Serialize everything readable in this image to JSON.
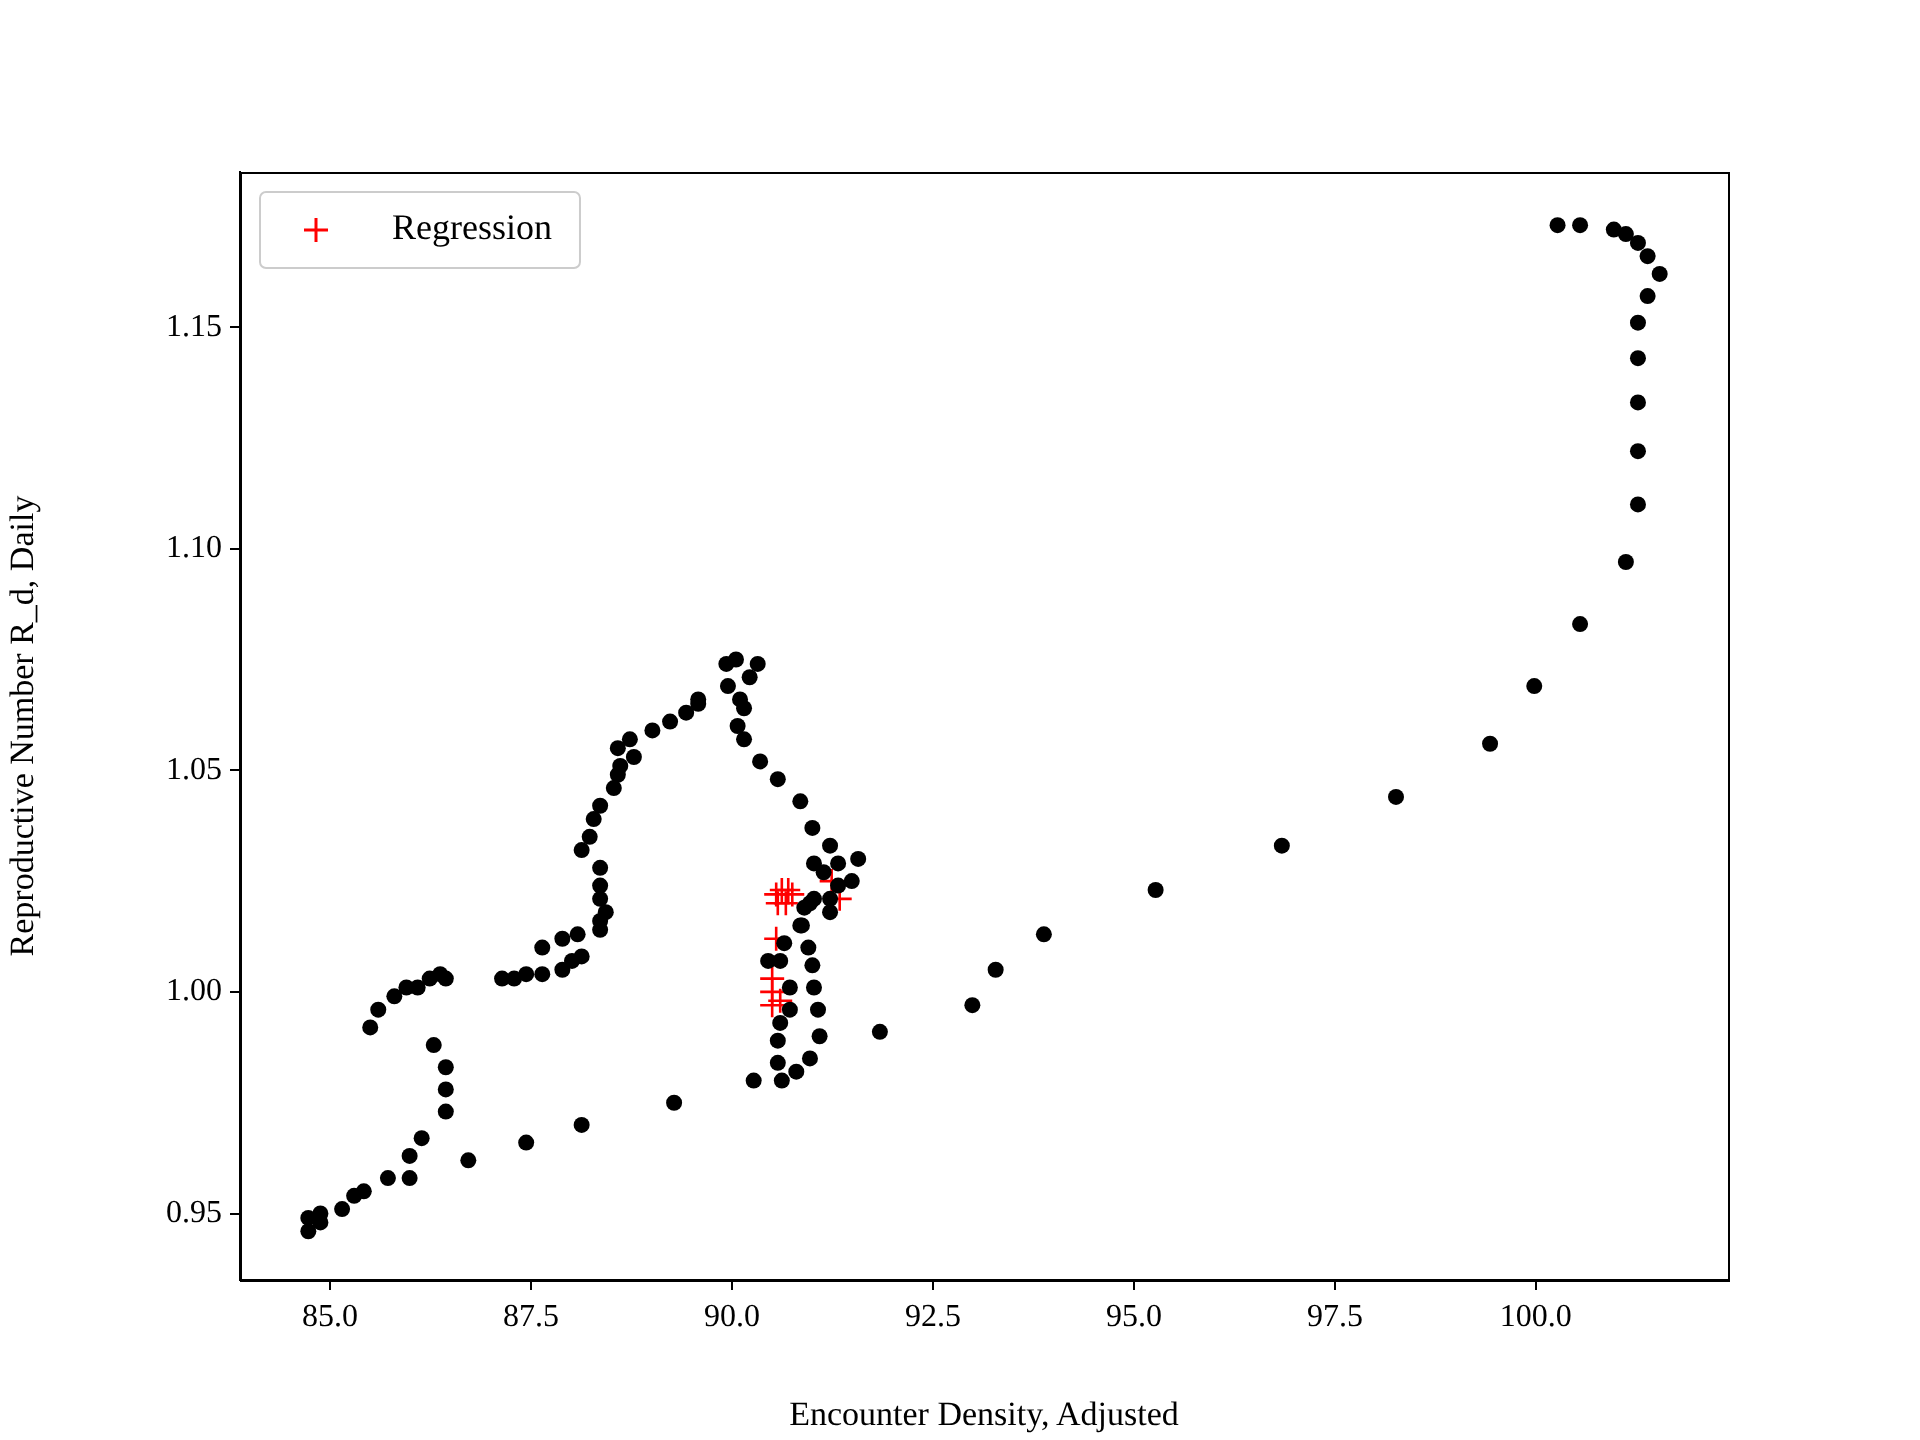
{
  "chart_data": {
    "type": "scatter",
    "xlabel": "Encounter Density, Adjusted",
    "ylabel": "Reproductive Number R_d, Daily",
    "xlim": [
      83.88,
      102.39
    ],
    "ylim": [
      0.935,
      1.185
    ],
    "xticks": [
      {
        "value": 85,
        "label": "85.0"
      },
      87.5,
      {
        "value": 90,
        "label": "90.0"
      },
      92.5,
      {
        "value": 95,
        "label": "95.0"
      },
      97.5,
      {
        "value": 100,
        "label": "100.0"
      }
    ],
    "yticks": [
      0.95,
      {
        "value": 1,
        "label": "1.00"
      },
      1.05,
      {
        "value": 1.1,
        "label": "1.10"
      },
      1.15
    ],
    "grid": false,
    "legend": "top left",
    "series": [
      {
        "color": "#000000",
        "marker": "circle",
        "x": [
          86.29,
          86.44,
          86.44,
          86.44,
          86.14,
          85.99,
          85.99,
          85.72,
          85.42,
          85.3,
          85.15,
          84.88,
          84.88,
          84.73,
          84.73,
          86.72,
          87.44,
          88.13,
          89.28,
          90.27,
          91.84,
          92.99,
          93.28,
          93.88,
          95.27,
          96.84,
          98.26,
          99.43,
          99.98,
          100.55,
          101.12,
          101.27,
          101.27,
          101.27,
          101.27,
          101.27,
          101.39,
          101.54,
          101.39,
          101.27,
          101.12,
          100.97,
          100.55,
          100.27,
          85.5,
          85.6,
          85.8,
          85.95,
          86.09,
          86.24,
          86.37,
          86.44,
          87.14,
          87.29,
          87.44,
          87.64,
          87.64,
          87.89,
          88.01,
          88.13,
          87.89,
          88.08,
          88.36,
          88.36,
          88.43,
          88.36,
          88.36,
          88.36,
          88.13,
          88.23,
          88.28,
          88.36,
          88.53,
          88.58,
          88.61,
          88.58,
          88.73,
          88.78,
          89.01,
          89.23,
          89.43,
          89.58,
          89.58,
          89.93,
          90.05,
          90.32,
          90.22,
          89.95,
          90.1,
          90.15,
          90.07,
          90.15,
          90.35,
          90.57,
          90.85,
          91.0,
          91.22,
          91.02,
          91.14,
          91.32,
          91.57,
          91.49,
          91.32,
          91.22,
          91.22,
          91.02,
          90.9,
          90.87,
          90.95,
          91.0,
          91.02,
          91.07,
          91.09,
          90.97,
          90.8,
          90.62,
          90.57,
          90.57,
          90.6,
          90.72,
          90.72,
          90.6,
          90.45,
          90.65,
          90.85,
          90.97
        ],
        "values": [
          0.988,
          0.983,
          0.978,
          0.973,
          0.967,
          0.963,
          0.958,
          0.958,
          0.955,
          0.954,
          0.951,
          0.95,
          0.948,
          0.949,
          0.946,
          0.962,
          0.966,
          0.97,
          0.975,
          0.98,
          0.991,
          0.997,
          1.005,
          1.013,
          1.023,
          1.033,
          1.044,
          1.056,
          1.069,
          1.083,
          1.097,
          1.11,
          1.122,
          1.133,
          1.143,
          1.151,
          1.157,
          1.162,
          1.166,
          1.169,
          1.171,
          1.172,
          1.173,
          1.173,
          0.992,
          0.996,
          0.999,
          1.001,
          1.001,
          1.003,
          1.004,
          1.003,
          1.003,
          1.003,
          1.004,
          1.004,
          1.01,
          1.005,
          1.007,
          1.008,
          1.012,
          1.013,
          1.014,
          1.016,
          1.018,
          1.021,
          1.024,
          1.028,
          1.032,
          1.035,
          1.039,
          1.042,
          1.046,
          1.049,
          1.051,
          1.055,
          1.057,
          1.053,
          1.059,
          1.061,
          1.063,
          1.065,
          1.066,
          1.074,
          1.075,
          1.074,
          1.071,
          1.069,
          1.066,
          1.064,
          1.06,
          1.057,
          1.052,
          1.048,
          1.043,
          1.037,
          1.033,
          1.029,
          1.027,
          1.029,
          1.03,
          1.025,
          1.024,
          1.021,
          1.018,
          1.021,
          1.019,
          1.015,
          1.01,
          1.006,
          1.001,
          0.996,
          0.99,
          0.985,
          0.982,
          0.98,
          0.984,
          0.989,
          0.993,
          0.996,
          1.001,
          1.007,
          1.007,
          1.011,
          1.015,
          1.02
        ]
      },
      {
        "name": "Regression",
        "color": "#ff0000",
        "marker": "cross",
        "x": [
          90.55,
          90.62,
          90.7,
          90.75,
          90.57,
          90.67,
          90.55,
          90.5,
          90.5,
          90.5,
          90.6,
          91.34,
          91.24
        ],
        "values": [
          1.022,
          1.023,
          1.023,
          1.022,
          1.02,
          1.02,
          1.012,
          1.003,
          1.0,
          0.997,
          0.998,
          1.021,
          1.025
        ]
      }
    ]
  }
}
